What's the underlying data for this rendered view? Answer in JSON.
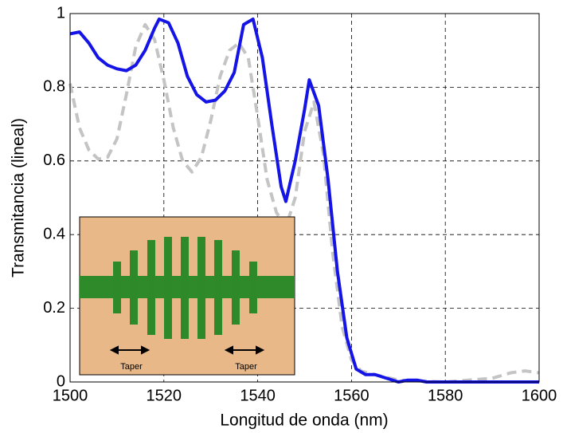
{
  "chart_data": {
    "type": "line",
    "xlabel": "Longitud de onda (nm)",
    "ylabel": "Transmitancia (lineal)",
    "xlim": [
      1500,
      1600
    ],
    "ylim": [
      0,
      1
    ],
    "xticks": [
      1500,
      1520,
      1540,
      1560,
      1580,
      1600
    ],
    "yticks": [
      0,
      0.2,
      0.4,
      0.6,
      0.8,
      1
    ],
    "grid": true,
    "series": [
      {
        "color": "#1414e6",
        "dash": false,
        "x": [
          1500,
          1502,
          1504,
          1506,
          1508,
          1510,
          1512,
          1514,
          1516,
          1518,
          1519,
          1521,
          1523,
          1525,
          1527,
          1529,
          1531,
          1533,
          1535,
          1537,
          1539,
          1541,
          1543,
          1545,
          1546,
          1548,
          1550,
          1551,
          1553,
          1555,
          1557,
          1559,
          1561,
          1563,
          1565,
          1570,
          1572,
          1574,
          1576,
          1600
        ],
        "values": [
          0.945,
          0.95,
          0.92,
          0.88,
          0.86,
          0.85,
          0.845,
          0.86,
          0.9,
          0.96,
          0.985,
          0.975,
          0.92,
          0.83,
          0.78,
          0.76,
          0.765,
          0.79,
          0.84,
          0.97,
          0.985,
          0.88,
          0.7,
          0.53,
          0.49,
          0.6,
          0.74,
          0.82,
          0.75,
          0.55,
          0.3,
          0.12,
          0.035,
          0.02,
          0.02,
          0,
          0.005,
          0.005,
          0,
          0
        ]
      },
      {
        "color": "#c4c4c4",
        "dash": true,
        "x": [
          1500,
          1502,
          1504,
          1506,
          1508,
          1510,
          1512,
          1514,
          1516,
          1518,
          1520,
          1522,
          1524,
          1526,
          1528,
          1530,
          1532,
          1534,
          1536,
          1538,
          1540,
          1542,
          1544,
          1546,
          1548,
          1550,
          1552,
          1554,
          1556,
          1558,
          1560,
          1562,
          1565,
          1570,
          1580,
          1590,
          1594,
          1597,
          1600
        ],
        "values": [
          0.81,
          0.69,
          0.63,
          0.605,
          0.61,
          0.66,
          0.78,
          0.91,
          0.97,
          0.93,
          0.82,
          0.69,
          0.6,
          0.57,
          0.61,
          0.71,
          0.83,
          0.9,
          0.92,
          0.88,
          0.72,
          0.55,
          0.46,
          0.42,
          0.5,
          0.68,
          0.76,
          0.62,
          0.35,
          0.15,
          0.06,
          0.03,
          0.02,
          0.005,
          0,
          0.01,
          0.025,
          0.03,
          0.025
        ]
      }
    ],
    "annotations": [
      "Taper",
      "Taper"
    ]
  }
}
